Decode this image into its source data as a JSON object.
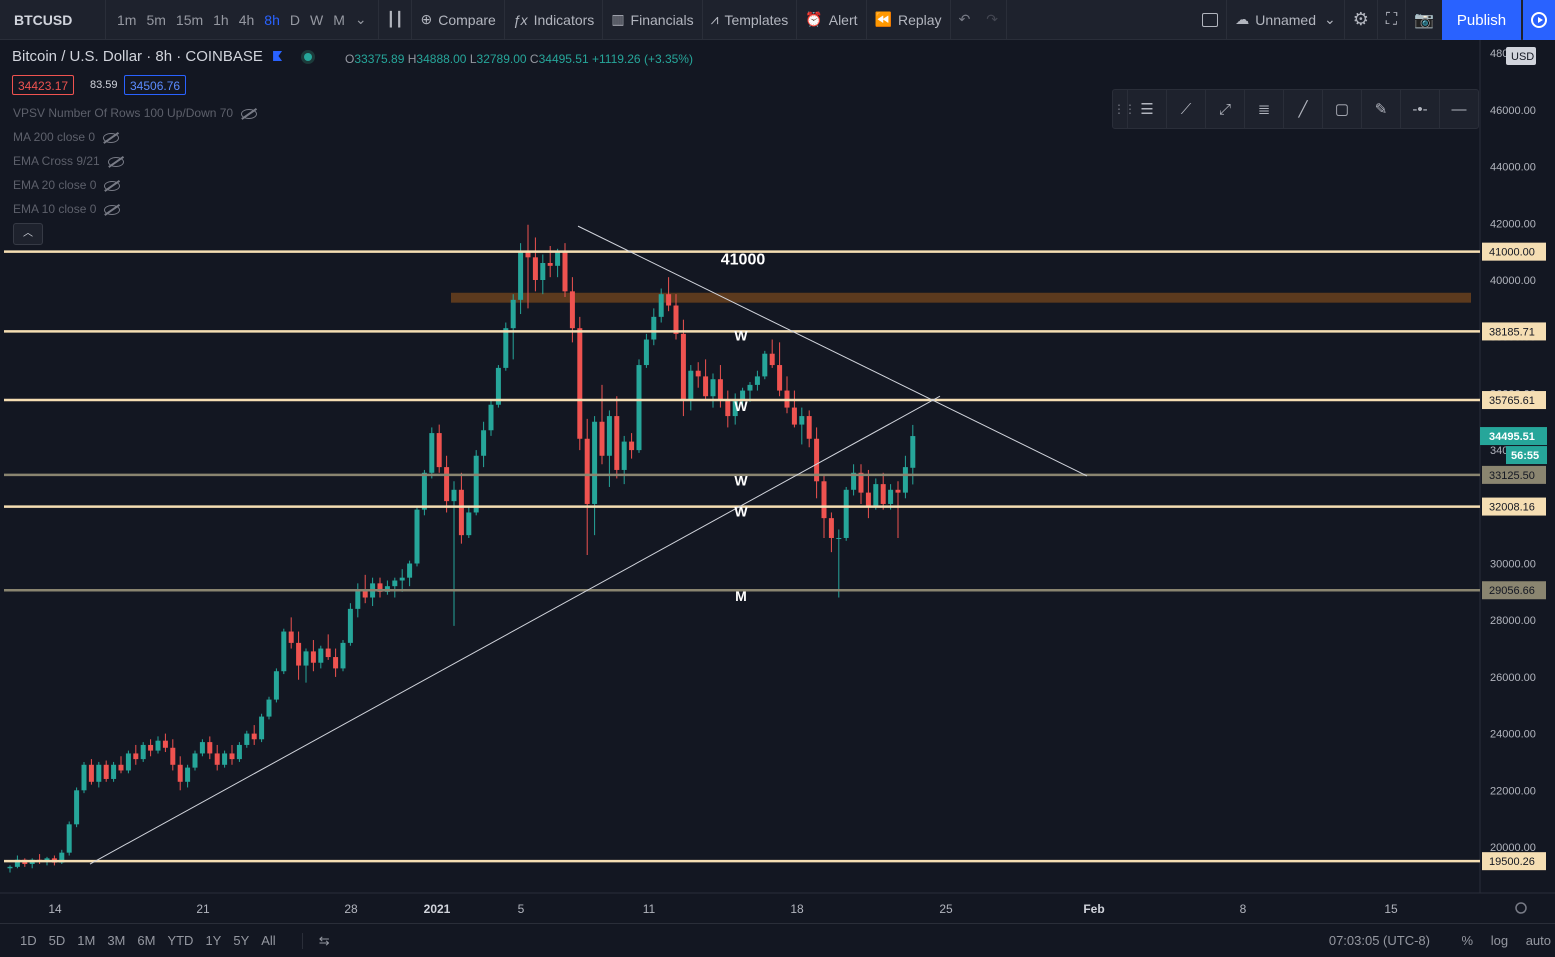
{
  "toolbar": {
    "symbol": "BTCUSD",
    "intervals": [
      "1m",
      "5m",
      "15m",
      "1h",
      "4h",
      "8h",
      "D",
      "W",
      "M"
    ],
    "active_interval": "8h",
    "compare": "Compare",
    "indicators": "Indicators",
    "financials": "Financials",
    "templates": "Templates",
    "alert": "Alert",
    "replay": "Replay",
    "layout_name": "Unnamed",
    "publish": "Publish"
  },
  "legend": {
    "title": "Bitcoin / U.S. Dollar · 8h · COINBASE",
    "o_label": "O",
    "o": "33375.89",
    "h_label": "H",
    "h": "34888.00",
    "l_label": "L",
    "l": "32789.00",
    "c_label": "C",
    "c": "34495.51",
    "change": "+1119.26 (+3.35%)",
    "sell": "34423.17",
    "spread": "83.59",
    "buy": "34506.76"
  },
  "indicators": [
    "VPSV Number Of Rows 100 Up/Down 70",
    "MA 200 close 0",
    "EMA Cross 9/21",
    "EMA 20 close 0",
    "EMA 10 close 0"
  ],
  "chart_data": {
    "type": "candlestick",
    "currency": "USD",
    "x_labels": [
      "14",
      "21",
      "28",
      "2021",
      "5",
      "11",
      "18",
      "25",
      "Feb",
      "8",
      "15"
    ],
    "y_ticks": [
      20000,
      22000,
      24000,
      26000,
      28000,
      30000,
      32000,
      34000,
      36000,
      38000,
      40000,
      42000,
      44000,
      46000,
      48000
    ],
    "ylim": [
      18800,
      48200
    ],
    "horizontal_levels": [
      {
        "value": 41000.0,
        "label": "41000.00",
        "color": "#f5deb3"
      },
      {
        "value": 38185.71,
        "label": "38185.71",
        "color": "#f5deb3"
      },
      {
        "value": 35765.61,
        "label": "35765.61",
        "color": "#f5deb3"
      },
      {
        "value": 33125.5,
        "label": "33125.50",
        "color": "#8a8570"
      },
      {
        "value": 32008.16,
        "label": "32008.16",
        "color": "#f5deb3"
      },
      {
        "value": 29056.66,
        "label": "29056.66",
        "color": "#8a8570"
      },
      {
        "value": 19500.26,
        "label": "19500.26",
        "color": "#f5deb3"
      }
    ],
    "zone": {
      "from": 39200,
      "to": 39550,
      "color": "#5c3a1e"
    },
    "last_price": "34495.51",
    "countdown": "56:55",
    "annotations": [
      {
        "text": "41000",
        "price": 40550
      },
      {
        "text": "W",
        "price": 38050
      },
      {
        "text": "W",
        "price": 35560
      },
      {
        "text": "W",
        "price": 32920
      },
      {
        "text": "W",
        "price": 31830
      },
      {
        "text": "M",
        "price": 28850
      }
    ],
    "candles": [
      [
        19250,
        19350,
        19100,
        19300
      ],
      [
        19300,
        19700,
        19250,
        19550
      ],
      [
        19550,
        19600,
        19300,
        19400
      ],
      [
        19400,
        19600,
        19250,
        19550
      ],
      [
        19550,
        19750,
        19400,
        19500
      ],
      [
        19500,
        19650,
        19350,
        19600
      ],
      [
        19600,
        19700,
        19350,
        19450
      ],
      [
        19450,
        19900,
        19400,
        19800
      ],
      [
        19800,
        20900,
        19700,
        20800
      ],
      [
        20800,
        22100,
        20700,
        22000
      ],
      [
        22000,
        23000,
        21900,
        22900
      ],
      [
        22900,
        23100,
        22200,
        22300
      ],
      [
        22300,
        23000,
        22100,
        22900
      ],
      [
        22900,
        23050,
        22300,
        22400
      ],
      [
        22400,
        23000,
        22300,
        22900
      ],
      [
        22900,
        23200,
        22600,
        22700
      ],
      [
        22700,
        23400,
        22600,
        23300
      ],
      [
        23300,
        23600,
        22900,
        23100
      ],
      [
        23100,
        23700,
        23000,
        23600
      ],
      [
        23600,
        23800,
        23200,
        23400
      ],
      [
        23400,
        23900,
        23300,
        23750
      ],
      [
        23750,
        24000,
        23350,
        23500
      ],
      [
        23500,
        23800,
        22700,
        22900
      ],
      [
        22900,
        23200,
        22000,
        22300
      ],
      [
        22300,
        22900,
        22100,
        22800
      ],
      [
        22800,
        23400,
        22700,
        23300
      ],
      [
        23300,
        23800,
        23200,
        23700
      ],
      [
        23700,
        23900,
        23100,
        23300
      ],
      [
        23300,
        23600,
        22700,
        22900
      ],
      [
        22900,
        23400,
        22800,
        23300
      ],
      [
        23300,
        23600,
        22900,
        23100
      ],
      [
        23100,
        23700,
        23000,
        23600
      ],
      [
        23600,
        24100,
        23500,
        24000
      ],
      [
        24000,
        24300,
        23600,
        23800
      ],
      [
        23800,
        24700,
        23700,
        24600
      ],
      [
        24600,
        25300,
        24500,
        25200
      ],
      [
        25200,
        26300,
        25100,
        26200
      ],
      [
        26200,
        27700,
        26100,
        27600
      ],
      [
        27600,
        28100,
        27000,
        27200
      ],
      [
        27200,
        27600,
        25900,
        26400
      ],
      [
        26400,
        27000,
        25800,
        26900
      ],
      [
        26900,
        27300,
        26200,
        26500
      ],
      [
        26500,
        27100,
        26300,
        27000
      ],
      [
        27000,
        27500,
        26600,
        26700
      ],
      [
        26700,
        27000,
        26000,
        26300
      ],
      [
        26300,
        27300,
        26200,
        27200
      ],
      [
        27200,
        28600,
        27100,
        28400
      ],
      [
        28400,
        29300,
        28100,
        29100
      ],
      [
        29100,
        29600,
        28600,
        28800
      ],
      [
        28800,
        29500,
        28500,
        29300
      ],
      [
        29300,
        29500,
        28800,
        29000
      ],
      [
        29000,
        29400,
        28900,
        29200
      ],
      [
        29200,
        29500,
        28800,
        29400
      ],
      [
        29400,
        29800,
        29000,
        29500
      ],
      [
        29500,
        30100,
        29200,
        30000
      ],
      [
        30000,
        32000,
        29900,
        31900
      ],
      [
        31900,
        33300,
        31700,
        33200
      ],
      [
        33200,
        34800,
        33000,
        34600
      ],
      [
        34600,
        34900,
        33200,
        33400
      ],
      [
        33400,
        33800,
        31800,
        32200
      ],
      [
        32200,
        32900,
        27800,
        32600
      ],
      [
        32600,
        33200,
        30700,
        31000
      ],
      [
        31000,
        32000,
        30900,
        31800
      ],
      [
        31800,
        34000,
        31700,
        33800
      ],
      [
        33800,
        35000,
        33400,
        34700
      ],
      [
        34700,
        35800,
        34500,
        35600
      ],
      [
        35600,
        37000,
        35500,
        36900
      ],
      [
        36900,
        38500,
        36800,
        38300
      ],
      [
        38300,
        39500,
        37200,
        39300
      ],
      [
        39300,
        41300,
        38800,
        41000
      ],
      [
        41000,
        41950,
        39000,
        40800
      ],
      [
        40800,
        41500,
        39600,
        40000
      ],
      [
        40000,
        40900,
        39500,
        40600
      ],
      [
        40600,
        41200,
        40100,
        40500
      ],
      [
        40500,
        41100,
        40100,
        41000
      ],
      [
        41000,
        41300,
        39400,
        39600
      ],
      [
        39600,
        40100,
        37800,
        38300
      ],
      [
        38300,
        38700,
        34000,
        34400
      ],
      [
        34400,
        35100,
        30300,
        32100
      ],
      [
        32100,
        35200,
        31000,
        35000
      ],
      [
        35000,
        36300,
        33500,
        33800
      ],
      [
        33800,
        35400,
        32700,
        35200
      ],
      [
        35200,
        35900,
        33000,
        33300
      ],
      [
        33300,
        34500,
        32800,
        34300
      ],
      [
        34300,
        34600,
        33700,
        34000
      ],
      [
        34000,
        37200,
        33900,
        37000
      ],
      [
        37000,
        38100,
        36900,
        37900
      ],
      [
        37900,
        39000,
        37700,
        38700
      ],
      [
        38700,
        39700,
        38500,
        39500
      ],
      [
        39500,
        40100,
        38900,
        39100
      ],
      [
        39100,
        39500,
        37900,
        38100
      ],
      [
        38100,
        38600,
        35200,
        35800
      ],
      [
        35800,
        37000,
        35400,
        36800
      ],
      [
        36800,
        37100,
        36200,
        36600
      ],
      [
        36600,
        37200,
        35800,
        35900
      ],
      [
        35900,
        36700,
        35500,
        36500
      ],
      [
        36500,
        37000,
        35500,
        35800
      ],
      [
        35800,
        36100,
        34800,
        35200
      ],
      [
        35200,
        36000,
        34900,
        35800
      ],
      [
        35800,
        36200,
        35500,
        36100
      ],
      [
        36100,
        36400,
        35700,
        36300
      ],
      [
        36300,
        36800,
        36100,
        36600
      ],
      [
        36600,
        37500,
        36500,
        37400
      ],
      [
        37400,
        37900,
        36900,
        37000
      ],
      [
        37000,
        37800,
        35900,
        36100
      ],
      [
        36100,
        36600,
        35300,
        35500
      ],
      [
        35500,
        36100,
        34800,
        34900
      ],
      [
        34900,
        35500,
        34200,
        35200
      ],
      [
        35200,
        35400,
        34100,
        34400
      ],
      [
        34400,
        34800,
        32300,
        32900
      ],
      [
        32900,
        33100,
        30900,
        31600
      ],
      [
        31600,
        31800,
        30400,
        30900
      ],
      [
        30900,
        31200,
        28800,
        30900
      ],
      [
        30900,
        32700,
        30800,
        32600
      ],
      [
        32600,
        33500,
        32400,
        33200
      ],
      [
        33200,
        33500,
        32100,
        32500
      ],
      [
        32500,
        33300,
        31600,
        32000
      ],
      [
        32000,
        33000,
        31900,
        32800
      ],
      [
        32800,
        33200,
        31900,
        32100
      ],
      [
        32100,
        32800,
        31900,
        32600
      ],
      [
        32600,
        32900,
        30900,
        32500
      ],
      [
        32500,
        33800,
        32300,
        33400
      ],
      [
        33375.89,
        34888,
        32789,
        34495.51
      ]
    ],
    "trendlines": [
      {
        "from": {
          "candle": 70,
          "price": 41900
        },
        "to": {
          "candle": 1155,
          "price": 33000
        }
      },
      {
        "from": {
          "candle": 9,
          "price": 19400
        },
        "to": {
          "candle": 100,
          "price": 35900
        }
      }
    ]
  },
  "timeframes": [
    "1D",
    "5D",
    "1M",
    "3M",
    "6M",
    "YTD",
    "1Y",
    "5Y",
    "All"
  ],
  "status": {
    "time": "07:03:05 (UTC-8)",
    "percent": "%",
    "log": "log",
    "auto": "auto"
  }
}
